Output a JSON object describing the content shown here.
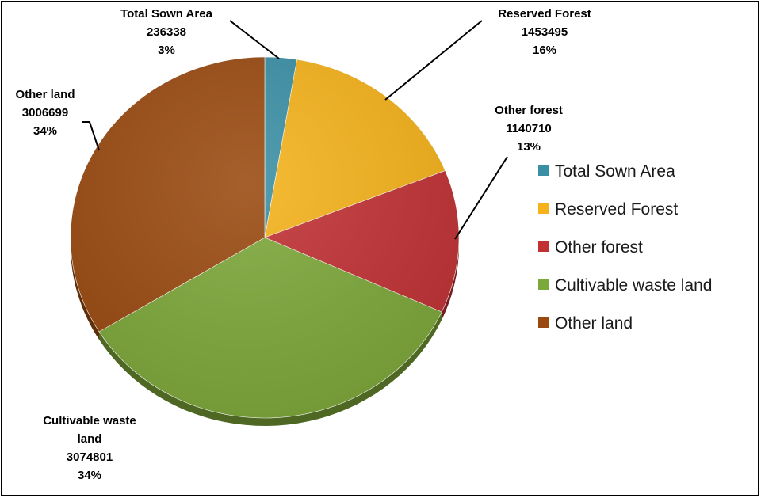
{
  "chart_data": {
    "type": "pie",
    "title": "",
    "slices": [
      {
        "label": "Total Sown Area",
        "label_lines": [
          "Total Sown Area"
        ],
        "value": 236338,
        "value_text": "236338",
        "percent_text": "3%",
        "color": "#3a8fa5"
      },
      {
        "label": "Reserved Forest",
        "label_lines": [
          "Reserved Forest"
        ],
        "value": 1453495,
        "value_text": "1453495",
        "percent_text": "16%",
        "color": "#f5b21a"
      },
      {
        "label": "Other forest",
        "label_lines": [
          "Other forest"
        ],
        "value": 1140710,
        "value_text": "1140710",
        "percent_text": "13%",
        "color": "#c13134"
      },
      {
        "label": "Cultivable waste land",
        "label_lines": [
          "Cultivable waste",
          "land"
        ],
        "value": 3074801,
        "value_text": "3074801",
        "percent_text": "34%",
        "color": "#7da83a"
      },
      {
        "label": "Other land",
        "label_lines": [
          "Other land"
        ],
        "value": 3006699,
        "value_text": "3006699",
        "percent_text": "34%",
        "color": "#9a4a10"
      }
    ],
    "legend_position": "right"
  }
}
